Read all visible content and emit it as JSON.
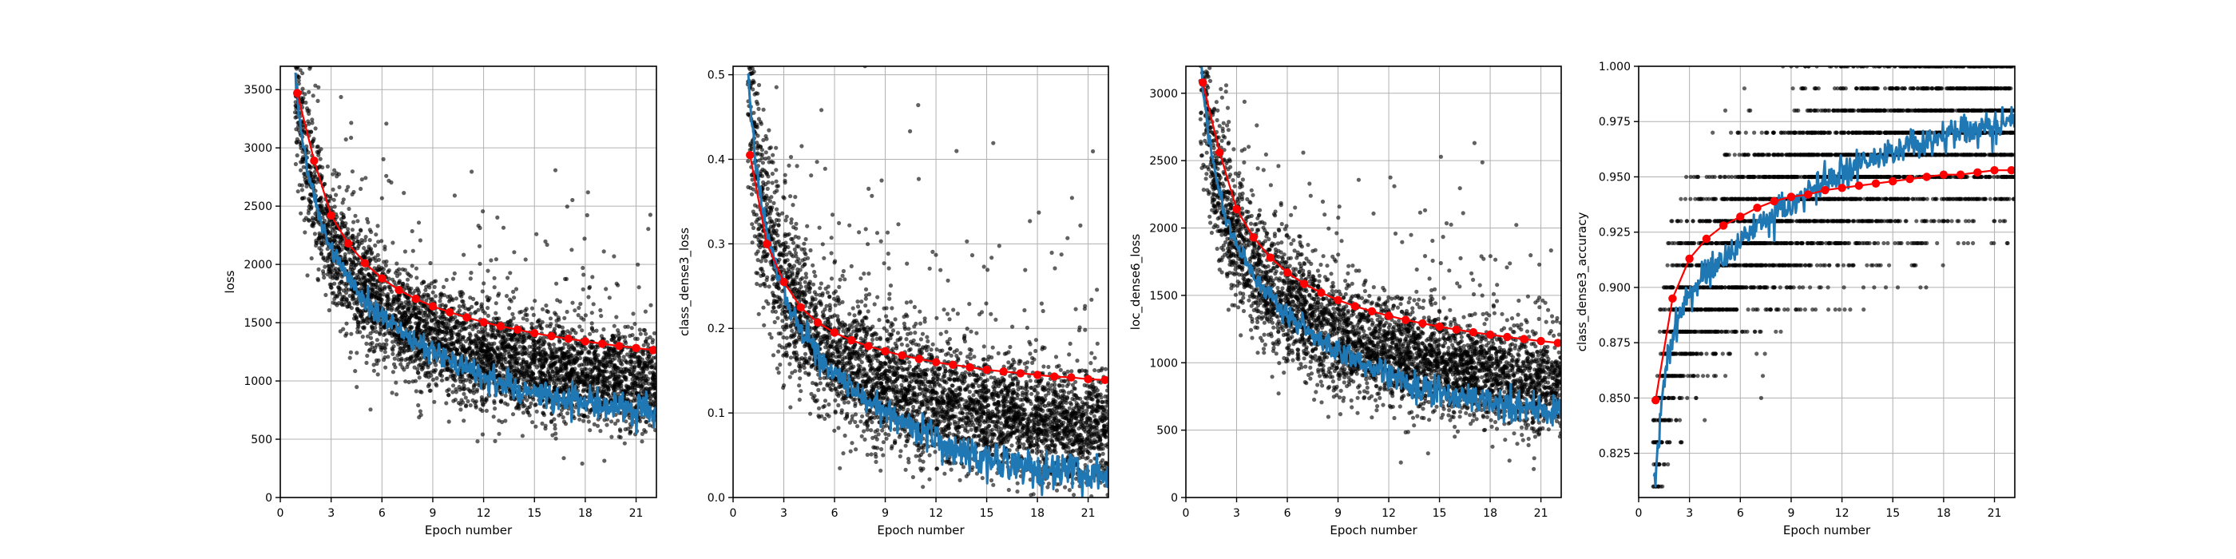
{
  "figure": {
    "panels": [
      {
        "xlabel": "Epoch number",
        "ylabel": "loss"
      },
      {
        "xlabel": "Epoch number",
        "ylabel": "class_dense3_loss"
      },
      {
        "xlabel": "Epoch number",
        "ylabel": "loc_dense6_loss"
      },
      {
        "xlabel": "Epoch number",
        "ylabel": "class_dense3_accuracy"
      }
    ]
  },
  "colors": {
    "scatter": "#000000",
    "train_line": "#1f77b4",
    "val_markers": "#ff0000",
    "grid": "#b0b0b0"
  },
  "chart_data": [
    {
      "type": "scatter",
      "xlabel": "Epoch number",
      "ylabel": "loss",
      "xlim": [
        0,
        22.2
      ],
      "ylim": [
        0,
        3700
      ],
      "xticks": [
        0,
        3,
        6,
        9,
        12,
        15,
        18,
        21
      ],
      "yticks": [
        0,
        500,
        1000,
        1500,
        2000,
        2500,
        3000,
        3500
      ],
      "grid": true,
      "series": [
        {
          "role": "batch samples",
          "style": "black dots",
          "trend": {
            "a": 3450,
            "b": 0.415
          },
          "spread": 250
        },
        {
          "role": "training smooth",
          "style": "blue line",
          "trend": {
            "a": 3450,
            "b": 0.415
          },
          "offset_start": 0,
          "offset_end": -220
        },
        {
          "role": "per-epoch",
          "style": "red line with markers",
          "x": [
            1,
            2,
            3,
            4,
            5,
            6,
            7,
            8,
            9,
            10,
            11,
            12,
            13,
            14,
            15,
            16,
            17,
            18,
            19,
            20,
            21,
            22
          ],
          "y": [
            3470,
            2890,
            2420,
            2180,
            2010,
            1880,
            1780,
            1705,
            1640,
            1590,
            1545,
            1505,
            1470,
            1440,
            1410,
            1385,
            1362,
            1340,
            1320,
            1300,
            1283,
            1265
          ]
        }
      ]
    },
    {
      "type": "scatter",
      "xlabel": "Epoch number",
      "ylabel": "class_dense3_loss",
      "xlim": [
        0,
        22.2
      ],
      "ylim": [
        0,
        0.51
      ],
      "xticks": [
        0,
        3,
        6,
        9,
        12,
        15,
        18,
        21
      ],
      "yticks": [
        0.0,
        0.1,
        0.2,
        0.3,
        0.4,
        0.5
      ],
      "grid": true,
      "series": [
        {
          "role": "batch samples",
          "style": "black dots",
          "trend": {
            "a": 0.47,
            "b": 0.57
          },
          "spread": 0.045
        },
        {
          "role": "training smooth",
          "style": "blue line",
          "trend": {
            "a": 0.47,
            "b": 0.57
          },
          "offset_start": 0,
          "offset_end": -0.055
        },
        {
          "role": "per-epoch",
          "style": "red line with markers",
          "x": [
            1,
            2,
            3,
            4,
            5,
            6,
            7,
            8,
            9,
            10,
            11,
            12,
            13,
            14,
            15,
            16,
            17,
            18,
            19,
            20,
            21,
            22
          ],
          "y": [
            0.405,
            0.3,
            0.255,
            0.225,
            0.207,
            0.195,
            0.186,
            0.179,
            0.173,
            0.168,
            0.164,
            0.16,
            0.157,
            0.154,
            0.151,
            0.149,
            0.147,
            0.145,
            0.143,
            0.142,
            0.14,
            0.139
          ]
        }
      ]
    },
    {
      "type": "scatter",
      "xlabel": "Epoch number",
      "ylabel": "loc_dense6_loss",
      "xlim": [
        0,
        22.2
      ],
      "ylim": [
        0,
        3200
      ],
      "xticks": [
        0,
        3,
        6,
        9,
        12,
        15,
        18,
        21
      ],
      "yticks": [
        0,
        500,
        1000,
        1500,
        2000,
        2500,
        3000
      ],
      "grid": true,
      "series": [
        {
          "role": "batch samples",
          "style": "black dots",
          "trend": {
            "a": 3050,
            "b": 0.42
          },
          "spread": 220
        },
        {
          "role": "training smooth",
          "style": "blue line",
          "trend": {
            "a": 3050,
            "b": 0.42
          },
          "offset_start": 0,
          "offset_end": -200
        },
        {
          "role": "per-epoch",
          "style": "red line with markers",
          "x": [
            1,
            2,
            3,
            4,
            5,
            6,
            7,
            8,
            9,
            10,
            11,
            12,
            13,
            14,
            15,
            16,
            17,
            18,
            19,
            20,
            21,
            22
          ],
          "y": [
            3080,
            2560,
            2140,
            1930,
            1780,
            1670,
            1585,
            1520,
            1465,
            1420,
            1382,
            1348,
            1318,
            1292,
            1268,
            1246,
            1226,
            1208,
            1191,
            1176,
            1161,
            1147
          ]
        }
      ]
    },
    {
      "type": "scatter",
      "xlabel": "Epoch number",
      "ylabel": "class_dense3_accuracy",
      "xlim": [
        0,
        22.2
      ],
      "ylim": [
        0.805,
        1.0
      ],
      "xticks": [
        0,
        3,
        6,
        9,
        12,
        15,
        18,
        21
      ],
      "yticks": [
        0.825,
        0.85,
        0.875,
        0.9,
        0.925,
        0.95,
        0.975,
        1.0
      ],
      "grid": true,
      "series": [
        {
          "role": "batch samples",
          "style": "black dots on 0.01 levels"
        },
        {
          "role": "training smooth",
          "style": "blue line",
          "x": [
            1,
            1.5,
            2,
            2.5,
            3,
            4,
            5,
            6,
            7,
            8,
            9,
            10,
            11,
            12,
            13,
            14,
            15,
            16,
            17,
            18,
            19,
            20,
            21,
            22
          ],
          "y": [
            0.815,
            0.86,
            0.878,
            0.89,
            0.897,
            0.905,
            0.913,
            0.921,
            0.928,
            0.933,
            0.938,
            0.943,
            0.947,
            0.951,
            0.955,
            0.958,
            0.961,
            0.964,
            0.966,
            0.968,
            0.97,
            0.971,
            0.972,
            0.974
          ]
        },
        {
          "role": "per-epoch",
          "style": "red line with markers",
          "x": [
            1,
            2,
            3,
            4,
            5,
            6,
            7,
            8,
            9,
            10,
            11,
            12,
            13,
            14,
            15,
            16,
            17,
            18,
            19,
            20,
            21,
            22
          ],
          "y": [
            0.849,
            0.895,
            0.913,
            0.922,
            0.928,
            0.932,
            0.936,
            0.939,
            0.941,
            0.942,
            0.944,
            0.945,
            0.946,
            0.947,
            0.948,
            0.949,
            0.95,
            0.951,
            0.951,
            0.952,
            0.953,
            0.953
          ]
        }
      ]
    }
  ]
}
